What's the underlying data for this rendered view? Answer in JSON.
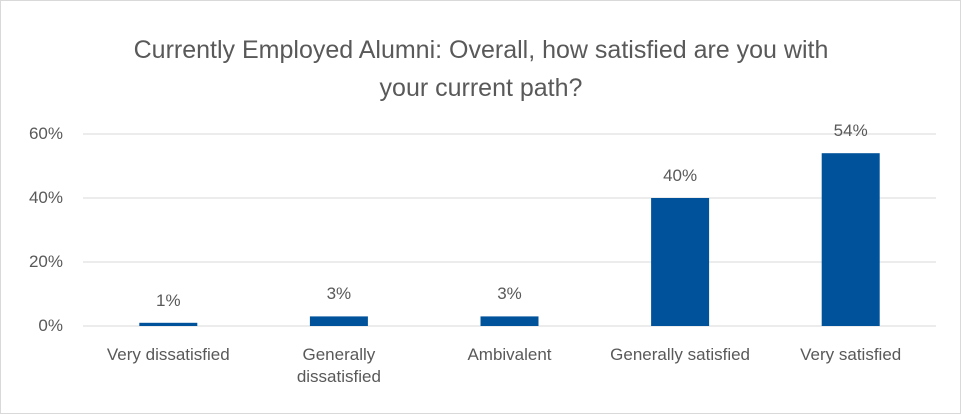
{
  "chart_data": {
    "type": "bar",
    "title": "Currently Employed Alumni: Overall, how satisfied are you with your current path?",
    "categories": [
      "Very dissatisfied",
      "Generally dissatisfied",
      "Ambivalent",
      "Generally satisfied",
      "Very satisfied"
    ],
    "values": [
      1,
      3,
      3,
      40,
      54
    ],
    "value_labels": [
      "1%",
      "3%",
      "3%",
      "40%",
      "54%"
    ],
    "color": "#00539b",
    "ylim": [
      0,
      60
    ],
    "yticks": [
      {
        "value": 0,
        "label": "0%"
      },
      {
        "value": 20,
        "label": "20%"
      },
      {
        "value": 40,
        "label": "40%"
      },
      {
        "value": 60,
        "label": "60%"
      }
    ],
    "grid": true
  }
}
